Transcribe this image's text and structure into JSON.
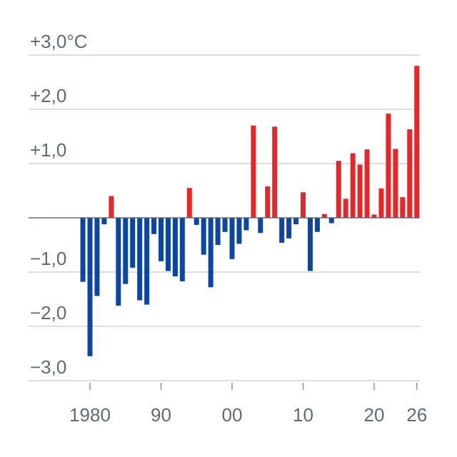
{
  "chart_data": {
    "type": "bar",
    "title": "",
    "xlabel": "",
    "ylabel": "",
    "ylim": [
      -3.0,
      3.0
    ],
    "grid": true,
    "colors": {
      "positive": "#e8262a",
      "negative": "#0d46a0",
      "grid": "#cfd4d8",
      "axis": "#5f6b74",
      "text": "#5f6b74"
    },
    "y_ticks": [
      {
        "value": 3,
        "label": "+3,0°C"
      },
      {
        "value": 2,
        "label": "+2,0"
      },
      {
        "value": 1,
        "label": "+1,0"
      },
      {
        "value": -1,
        "label": "−1,0"
      },
      {
        "value": -2,
        "label": "−2,0"
      },
      {
        "value": -3,
        "label": "−3,0"
      }
    ],
    "x_ticks": [
      {
        "value": 1980,
        "label": "1980"
      },
      {
        "value": 1990,
        "label": "90"
      },
      {
        "value": 2000,
        "label": "00"
      },
      {
        "value": 2010,
        "label": "10"
      },
      {
        "value": 2020,
        "label": "20"
      },
      {
        "value": 2026,
        "label": "26"
      }
    ],
    "x": [
      1979,
      1980,
      1981,
      1982,
      1983,
      1984,
      1985,
      1986,
      1987,
      1988,
      1989,
      1990,
      1991,
      1992,
      1993,
      1994,
      1995,
      1996,
      1997,
      1998,
      1999,
      2000,
      2001,
      2002,
      2003,
      2004,
      2005,
      2006,
      2007,
      2008,
      2009,
      2010,
      2011,
      2012,
      2013,
      2014,
      2015,
      2016,
      2017,
      2018,
      2019,
      2020,
      2021,
      2022,
      2023,
      2024,
      2025,
      2026
    ],
    "values": [
      -1.18,
      -2.55,
      -1.44,
      -0.12,
      0.4,
      -1.62,
      -1.22,
      -0.92,
      -1.52,
      -1.6,
      -0.3,
      -0.8,
      -0.98,
      -1.08,
      -1.17,
      0.55,
      -0.13,
      -0.68,
      -1.28,
      -0.5,
      -0.26,
      -0.76,
      -0.48,
      -0.23,
      1.7,
      -0.28,
      0.58,
      1.68,
      -0.46,
      -0.38,
      -0.12,
      0.47,
      -0.98,
      -0.26,
      0.07,
      -0.1,
      1.05,
      0.35,
      1.19,
      0.98,
      1.26,
      0.06,
      0.54,
      1.92,
      1.27,
      0.38,
      1.63,
      2.8
    ]
  }
}
